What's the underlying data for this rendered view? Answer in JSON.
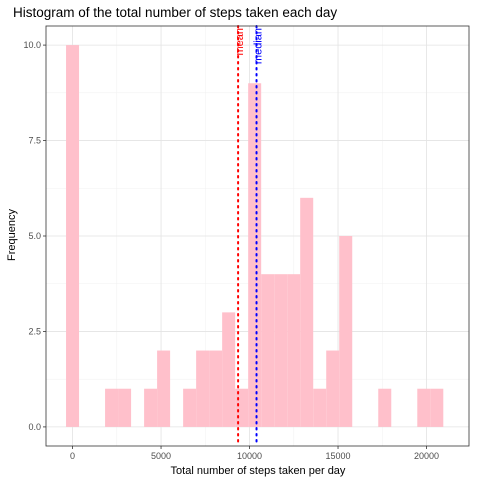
{
  "chart_data": {
    "type": "bar",
    "title": "Histogram of the total number of steps taken each day",
    "xlabel": "Total number of steps taken per day",
    "ylabel": "Frequency",
    "bin_width": 735,
    "bins": [
      {
        "x": 0,
        "count": 10
      },
      {
        "x": 735,
        "count": 0
      },
      {
        "x": 1470,
        "count": 0
      },
      {
        "x": 2205,
        "count": 1
      },
      {
        "x": 2940,
        "count": 1
      },
      {
        "x": 3675,
        "count": 0
      },
      {
        "x": 4410,
        "count": 1
      },
      {
        "x": 5145,
        "count": 2
      },
      {
        "x": 5880,
        "count": 0
      },
      {
        "x": 6615,
        "count": 1
      },
      {
        "x": 7350,
        "count": 2
      },
      {
        "x": 8085,
        "count": 2
      },
      {
        "x": 8820,
        "count": 3
      },
      {
        "x": 9555,
        "count": 1
      },
      {
        "x": 10290,
        "count": 9
      },
      {
        "x": 11025,
        "count": 4
      },
      {
        "x": 11760,
        "count": 4
      },
      {
        "x": 12495,
        "count": 4
      },
      {
        "x": 13230,
        "count": 6
      },
      {
        "x": 13965,
        "count": 1
      },
      {
        "x": 14700,
        "count": 2
      },
      {
        "x": 15435,
        "count": 5
      },
      {
        "x": 16170,
        "count": 0
      },
      {
        "x": 16905,
        "count": 0
      },
      {
        "x": 17640,
        "count": 1
      },
      {
        "x": 18375,
        "count": 0
      },
      {
        "x": 19110,
        "count": 0
      },
      {
        "x": 19845,
        "count": 1
      },
      {
        "x": 20580,
        "count": 1
      }
    ],
    "xlim": [
      -1500,
      22400
    ],
    "ylim": [
      -0.5,
      10.5
    ],
    "x_ticks": [
      0,
      5000,
      10000,
      15000,
      20000
    ],
    "x_tick_labels": [
      "0",
      "5000",
      "10000",
      "15000",
      "20000"
    ],
    "y_ticks": [
      0,
      2.5,
      5,
      7.5,
      10
    ],
    "y_tick_labels": [
      "0.0",
      "2.5",
      "5.0",
      "7.5",
      "10.0"
    ],
    "vlines": [
      {
        "label": "mean",
        "x": 9354,
        "color": "#ff0000"
      },
      {
        "label": "median",
        "x": 10395,
        "color": "#0000ff"
      }
    ],
    "bar_color": "#ffc0cb",
    "grid": true
  }
}
